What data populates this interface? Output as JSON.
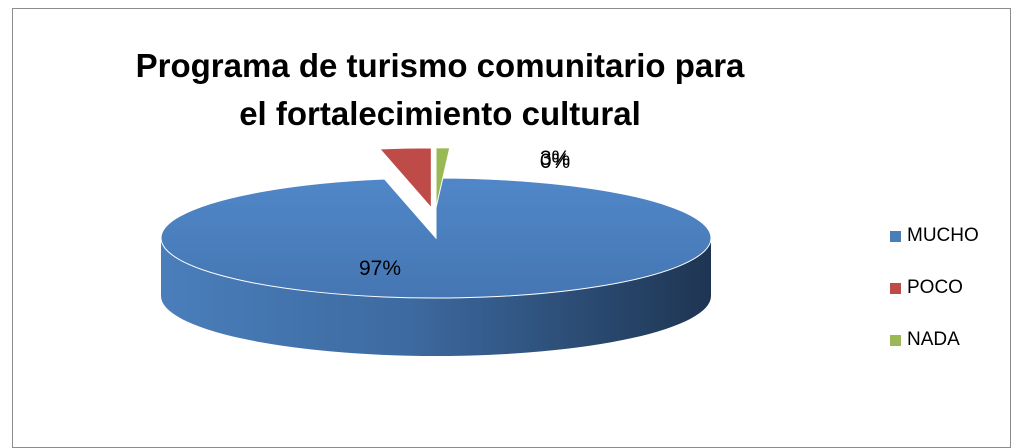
{
  "chart_data": {
    "type": "pie",
    "title": "Programa de turismo comunitario para el fortalecimiento cultural",
    "categories": [
      "MUCHO",
      "POCO",
      "NADA"
    ],
    "values": [
      97,
      3,
      0
    ],
    "data_labels": [
      "97%",
      "3%",
      "0%"
    ],
    "legend_position": "right",
    "colors": [
      "#4a7ebb",
      "#be4b48",
      "#98b954"
    ],
    "style": "3d-exploded"
  }
}
